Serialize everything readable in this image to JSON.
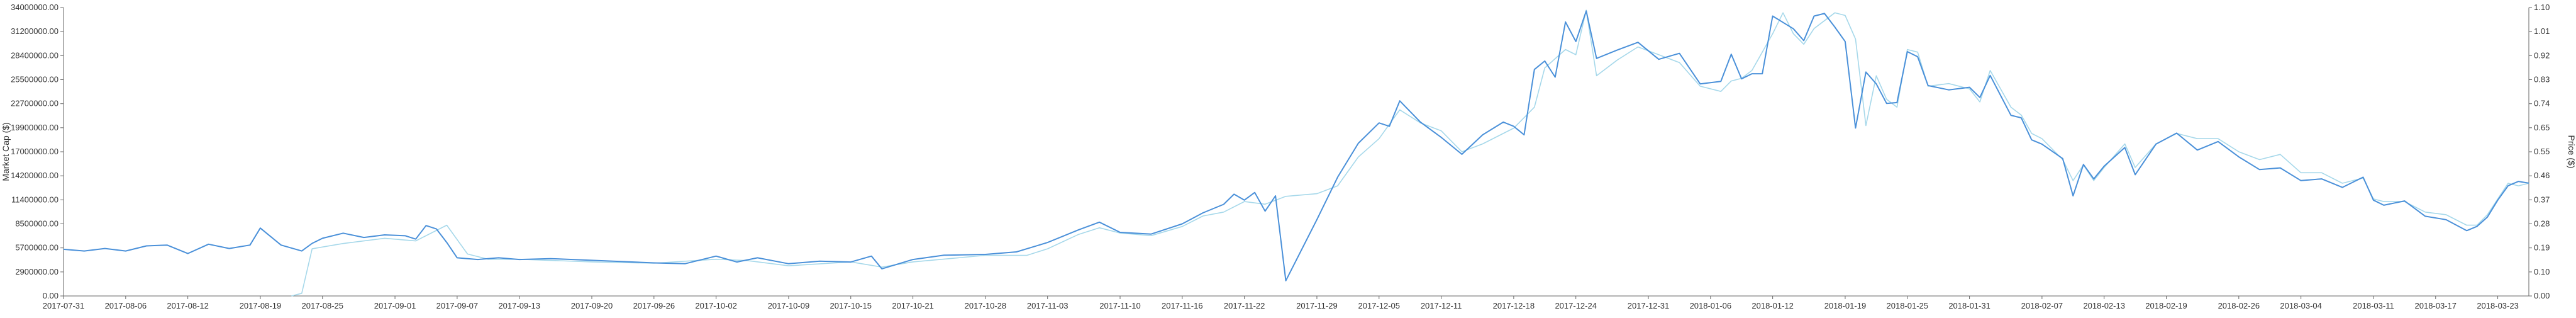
{
  "chart_data": {
    "type": "line",
    "title": "",
    "ylabel_left": "Market Cap ($)",
    "ylabel_right": "Price ($)",
    "grid": false,
    "legend": "none",
    "colors": {
      "market_cap": "#4a90d9",
      "price": "#a6d8ea"
    },
    "x_ticks": [
      "2017-07-31",
      "2017-08-06",
      "2017-08-12",
      "2017-08-19",
      "2017-08-25",
      "2017-09-01",
      "2017-09-07",
      "2017-09-13",
      "2017-09-20",
      "2017-09-26",
      "2017-10-02",
      "2017-10-09",
      "2017-10-15",
      "2017-10-21",
      "2017-10-28",
      "2017-11-03",
      "2017-11-10",
      "2017-11-16",
      "2017-11-22",
      "2017-11-29",
      "2017-12-05",
      "2017-12-11",
      "2017-12-18",
      "2017-12-24",
      "2017-12-31",
      "2018-01-06",
      "2018-01-12",
      "2018-01-19",
      "2018-01-25",
      "2018-01-31",
      "2018-02-07",
      "2018-02-13",
      "2018-02-19",
      "2018-02-26",
      "2018-03-04",
      "2018-03-11",
      "2018-03-17",
      "2018-03-23"
    ],
    "y_left_ticks": [
      "0.00",
      "2900000.00",
      "5700000.00",
      "8500000.00",
      "11400000.00",
      "14200000.00",
      "17000000.00",
      "19900000.00",
      "22700000.00",
      "25500000.00",
      "28400000.00",
      "31200000.00",
      "34000000.00"
    ],
    "y_right_ticks": [
      "0.00",
      "0.10",
      "0.19",
      "0.28",
      "0.37",
      "0.46",
      "0.55",
      "0.65",
      "0.74",
      "0.83",
      "0.92",
      "1.01",
      "1.10"
    ],
    "y_left_range": [
      0,
      34000000
    ],
    "y_right_range": [
      0,
      1.1
    ],
    "x_range": [
      "2017-07-31",
      "2018-03-26"
    ],
    "series": [
      {
        "key": "market_cap",
        "axis": "left",
        "points": [
          [
            "2017-07-31",
            5500000
          ],
          [
            "2017-08-02",
            5300000
          ],
          [
            "2017-08-04",
            5600000
          ],
          [
            "2017-08-06",
            5300000
          ],
          [
            "2017-08-08",
            5900000
          ],
          [
            "2017-08-10",
            6000000
          ],
          [
            "2017-08-12",
            5000000
          ],
          [
            "2017-08-14",
            6100000
          ],
          [
            "2017-08-16",
            5600000
          ],
          [
            "2017-08-18",
            6000000
          ],
          [
            "2017-08-19",
            8000000
          ],
          [
            "2017-08-21",
            6000000
          ],
          [
            "2017-08-23",
            5300000
          ],
          [
            "2017-08-24",
            6200000
          ],
          [
            "2017-08-25",
            6800000
          ],
          [
            "2017-08-27",
            7400000
          ],
          [
            "2017-08-29",
            6900000
          ],
          [
            "2017-08-31",
            7200000
          ],
          [
            "2017-09-02",
            7100000
          ],
          [
            "2017-09-03",
            6700000
          ],
          [
            "2017-09-04",
            8300000
          ],
          [
            "2017-09-05",
            7900000
          ],
          [
            "2017-09-06",
            6300000
          ],
          [
            "2017-09-07",
            4500000
          ],
          [
            "2017-09-09",
            4300000
          ],
          [
            "2017-09-11",
            4500000
          ],
          [
            "2017-09-13",
            4300000
          ],
          [
            "2017-09-16",
            4400000
          ],
          [
            "2017-09-20",
            4200000
          ],
          [
            "2017-09-26",
            3900000
          ],
          [
            "2017-09-29",
            3800000
          ],
          [
            "2017-10-02",
            4700000
          ],
          [
            "2017-10-04",
            4000000
          ],
          [
            "2017-10-06",
            4500000
          ],
          [
            "2017-10-09",
            3800000
          ],
          [
            "2017-10-12",
            4100000
          ],
          [
            "2017-10-15",
            4000000
          ],
          [
            "2017-10-17",
            4700000
          ],
          [
            "2017-10-18",
            3200000
          ],
          [
            "2017-10-21",
            4300000
          ],
          [
            "2017-10-24",
            4800000
          ],
          [
            "2017-10-28",
            4900000
          ],
          [
            "2017-10-31",
            5200000
          ],
          [
            "2017-11-03",
            6300000
          ],
          [
            "2017-11-06",
            7800000
          ],
          [
            "2017-11-08",
            8700000
          ],
          [
            "2017-11-10",
            7500000
          ],
          [
            "2017-11-13",
            7300000
          ],
          [
            "2017-11-16",
            8500000
          ],
          [
            "2017-11-18",
            9800000
          ],
          [
            "2017-11-20",
            10800000
          ],
          [
            "2017-11-21",
            12000000
          ],
          [
            "2017-11-22",
            11300000
          ],
          [
            "2017-11-23",
            12200000
          ],
          [
            "2017-11-24",
            10000000
          ],
          [
            "2017-11-25",
            11800000
          ],
          [
            "2017-11-26",
            1800000
          ],
          [
            "2017-11-29",
            9000000
          ],
          [
            "2017-12-01",
            14000000
          ],
          [
            "2017-12-03",
            18000000
          ],
          [
            "2017-12-05",
            20400000
          ],
          [
            "2017-12-06",
            20000000
          ],
          [
            "2017-12-07",
            23000000
          ],
          [
            "2017-12-09",
            20500000
          ],
          [
            "2017-12-11",
            18700000
          ],
          [
            "2017-12-13",
            16700000
          ],
          [
            "2017-12-15",
            19000000
          ],
          [
            "2017-12-17",
            20500000
          ],
          [
            "2017-12-18",
            20000000
          ],
          [
            "2017-12-19",
            19000000
          ],
          [
            "2017-12-20",
            26700000
          ],
          [
            "2017-12-21",
            27700000
          ],
          [
            "2017-12-22",
            25800000
          ],
          [
            "2017-12-23",
            32300000
          ],
          [
            "2017-12-24",
            30000000
          ],
          [
            "2017-12-25",
            33600000
          ],
          [
            "2017-12-26",
            28000000
          ],
          [
            "2017-12-28",
            29000000
          ],
          [
            "2017-12-30",
            29900000
          ],
          [
            "2018-01-01",
            27900000
          ],
          [
            "2018-01-03",
            28600000
          ],
          [
            "2018-01-05",
            25000000
          ],
          [
            "2018-01-07",
            25300000
          ],
          [
            "2018-01-08",
            28500000
          ],
          [
            "2018-01-09",
            25600000
          ],
          [
            "2018-01-10",
            26200000
          ],
          [
            "2018-01-11",
            26200000
          ],
          [
            "2018-01-12",
            33000000
          ],
          [
            "2018-01-14",
            31500000
          ],
          [
            "2018-01-15",
            30100000
          ],
          [
            "2018-01-16",
            33000000
          ],
          [
            "2018-01-17",
            33300000
          ],
          [
            "2018-01-18",
            31700000
          ],
          [
            "2018-01-19",
            30000000
          ],
          [
            "2018-01-20",
            19800000
          ],
          [
            "2018-01-21",
            26400000
          ],
          [
            "2018-01-22",
            25000000
          ],
          [
            "2018-01-23",
            22700000
          ],
          [
            "2018-01-24",
            22800000
          ],
          [
            "2018-01-25",
            28800000
          ],
          [
            "2018-01-26",
            28200000
          ],
          [
            "2018-01-27",
            24800000
          ],
          [
            "2018-01-29",
            24300000
          ],
          [
            "2018-01-31",
            24600000
          ],
          [
            "2018-02-01",
            23400000
          ],
          [
            "2018-02-02",
            26000000
          ],
          [
            "2018-02-04",
            21300000
          ],
          [
            "2018-02-05",
            21000000
          ],
          [
            "2018-02-06",
            18400000
          ],
          [
            "2018-02-07",
            17900000
          ],
          [
            "2018-02-09",
            16200000
          ],
          [
            "2018-02-10",
            11800000
          ],
          [
            "2018-02-11",
            15500000
          ],
          [
            "2018-02-12",
            13800000
          ],
          [
            "2018-02-13",
            15300000
          ],
          [
            "2018-02-15",
            17500000
          ],
          [
            "2018-02-16",
            14300000
          ],
          [
            "2018-02-18",
            17900000
          ],
          [
            "2018-02-20",
            19200000
          ],
          [
            "2018-02-22",
            17200000
          ],
          [
            "2018-02-24",
            18200000
          ],
          [
            "2018-02-26",
            16400000
          ],
          [
            "2018-02-28",
            14900000
          ],
          [
            "2018-03-02",
            15100000
          ],
          [
            "2018-03-04",
            13600000
          ],
          [
            "2018-03-06",
            13800000
          ],
          [
            "2018-03-08",
            12800000
          ],
          [
            "2018-03-10",
            14000000
          ],
          [
            "2018-03-11",
            11300000
          ],
          [
            "2018-03-12",
            10700000
          ],
          [
            "2018-03-14",
            11200000
          ],
          [
            "2018-03-16",
            9400000
          ],
          [
            "2018-03-18",
            9000000
          ],
          [
            "2018-03-20",
            7700000
          ],
          [
            "2018-03-21",
            8200000
          ],
          [
            "2018-03-22",
            9300000
          ],
          [
            "2018-03-23",
            11300000
          ],
          [
            "2018-03-24",
            13000000
          ],
          [
            "2018-03-25",
            13500000
          ],
          [
            "2018-03-26",
            13300000
          ]
        ]
      },
      {
        "key": "price",
        "axis": "right",
        "points": [
          [
            "2017-08-22",
            0.0
          ],
          [
            "2017-08-23",
            0.01
          ],
          [
            "2017-08-24",
            0.18
          ],
          [
            "2017-08-27",
            0.2
          ],
          [
            "2017-08-31",
            0.22
          ],
          [
            "2017-09-03",
            0.21
          ],
          [
            "2017-09-06",
            0.27
          ],
          [
            "2017-09-08",
            0.16
          ],
          [
            "2017-09-10",
            0.14
          ],
          [
            "2017-09-13",
            0.14
          ],
          [
            "2017-09-20",
            0.13
          ],
          [
            "2017-09-26",
            0.125
          ],
          [
            "2017-10-02",
            0.14
          ],
          [
            "2017-10-05",
            0.135
          ],
          [
            "2017-10-09",
            0.115
          ],
          [
            "2017-10-15",
            0.13
          ],
          [
            "2017-10-18",
            0.11
          ],
          [
            "2017-10-21",
            0.13
          ],
          [
            "2017-10-28",
            0.155
          ],
          [
            "2017-11-01",
            0.155
          ],
          [
            "2017-11-03",
            0.18
          ],
          [
            "2017-11-06",
            0.235
          ],
          [
            "2017-11-08",
            0.26
          ],
          [
            "2017-11-10",
            0.24
          ],
          [
            "2017-11-13",
            0.23
          ],
          [
            "2017-11-16",
            0.265
          ],
          [
            "2017-11-18",
            0.305
          ],
          [
            "2017-11-20",
            0.32
          ],
          [
            "2017-11-22",
            0.36
          ],
          [
            "2017-11-24",
            0.35
          ],
          [
            "2017-11-26",
            0.38
          ],
          [
            "2017-11-29",
            0.39
          ],
          [
            "2017-12-01",
            0.42
          ],
          [
            "2017-12-03",
            0.53
          ],
          [
            "2017-12-05",
            0.6
          ],
          [
            "2017-12-07",
            0.71
          ],
          [
            "2017-12-09",
            0.66
          ],
          [
            "2017-12-11",
            0.63
          ],
          [
            "2017-12-13",
            0.55
          ],
          [
            "2017-12-15",
            0.58
          ],
          [
            "2017-12-18",
            0.64
          ],
          [
            "2017-12-20",
            0.72
          ],
          [
            "2017-12-21",
            0.87
          ],
          [
            "2017-12-23",
            0.94
          ],
          [
            "2017-12-24",
            0.92
          ],
          [
            "2017-12-25",
            1.09
          ],
          [
            "2017-12-26",
            0.84
          ],
          [
            "2017-12-28",
            0.9
          ],
          [
            "2017-12-30",
            0.95
          ],
          [
            "2018-01-01",
            0.92
          ],
          [
            "2018-01-03",
            0.89
          ],
          [
            "2018-01-05",
            0.8
          ],
          [
            "2018-01-07",
            0.78
          ],
          [
            "2018-01-08",
            0.82
          ],
          [
            "2018-01-09",
            0.83
          ],
          [
            "2018-01-10",
            0.86
          ],
          [
            "2018-01-12",
            1.0
          ],
          [
            "2018-01-13",
            1.08
          ],
          [
            "2018-01-14",
            1.0
          ],
          [
            "2018-01-15",
            0.96
          ],
          [
            "2018-01-16",
            1.02
          ],
          [
            "2018-01-18",
            1.08
          ],
          [
            "2018-01-19",
            1.07
          ],
          [
            "2018-01-20",
            0.98
          ],
          [
            "2018-01-21",
            0.65
          ],
          [
            "2018-01-22",
            0.84
          ],
          [
            "2018-01-23",
            0.75
          ],
          [
            "2018-01-24",
            0.72
          ],
          [
            "2018-01-25",
            0.94
          ],
          [
            "2018-01-26",
            0.93
          ],
          [
            "2018-01-27",
            0.8
          ],
          [
            "2018-01-29",
            0.81
          ],
          [
            "2018-01-31",
            0.79
          ],
          [
            "2018-02-01",
            0.74
          ],
          [
            "2018-02-02",
            0.86
          ],
          [
            "2018-02-04",
            0.72
          ],
          [
            "2018-02-05",
            0.69
          ],
          [
            "2018-02-06",
            0.62
          ],
          [
            "2018-02-07",
            0.6
          ],
          [
            "2018-02-09",
            0.52
          ],
          [
            "2018-02-10",
            0.44
          ],
          [
            "2018-02-11",
            0.5
          ],
          [
            "2018-02-12",
            0.44
          ],
          [
            "2018-02-13",
            0.49
          ],
          [
            "2018-02-15",
            0.58
          ],
          [
            "2018-02-16",
            0.49
          ],
          [
            "2018-02-18",
            0.58
          ],
          [
            "2018-02-20",
            0.62
          ],
          [
            "2018-02-22",
            0.6
          ],
          [
            "2018-02-24",
            0.6
          ],
          [
            "2018-02-26",
            0.55
          ],
          [
            "2018-02-28",
            0.52
          ],
          [
            "2018-03-02",
            0.54
          ],
          [
            "2018-03-04",
            0.47
          ],
          [
            "2018-03-06",
            0.47
          ],
          [
            "2018-03-08",
            0.43
          ],
          [
            "2018-03-10",
            0.45
          ],
          [
            "2018-03-11",
            0.37
          ],
          [
            "2018-03-12",
            0.36
          ],
          [
            "2018-03-14",
            0.36
          ],
          [
            "2018-03-16",
            0.32
          ],
          [
            "2018-03-18",
            0.31
          ],
          [
            "2018-03-20",
            0.27
          ],
          [
            "2018-03-21",
            0.27
          ],
          [
            "2018-03-22",
            0.31
          ],
          [
            "2018-03-23",
            0.37
          ],
          [
            "2018-03-24",
            0.43
          ],
          [
            "2018-03-25",
            0.42
          ],
          [
            "2018-03-26",
            0.43
          ]
        ]
      }
    ]
  }
}
